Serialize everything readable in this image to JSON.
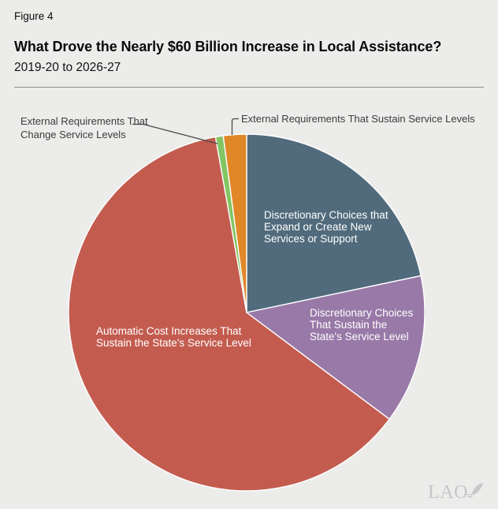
{
  "header": {
    "figure_label": "Figure 4",
    "title": "What Drove the Nearly $60 Billion Increase in Local Assistance?",
    "subtitle": "2019-20 to 2026-27"
  },
  "chart_data": {
    "type": "pie",
    "title": "What Drove the Nearly $60 Billion Increase in Local Assistance?",
    "subtitle": "2019-20 to 2026-27",
    "total_described": "Nearly $60 Billion increase in Local Assistance",
    "values_shown_as_numbers": false,
    "direction": "clockwise",
    "start_angle_deg_from_north": 0,
    "legend": "labels placed on or beside slices",
    "slices": [
      {
        "label": "Discretionary Choices that Expand or Create New Services or Support",
        "share_pct": 21.7,
        "approx_angle_deg": 78,
        "color": "#516b7c",
        "label_placement": "inside"
      },
      {
        "label": "Discretionary Choices That Sustain the State's Service Level",
        "share_pct": 13.5,
        "approx_angle_deg": 48.5,
        "color": "#9879a7",
        "label_placement": "inside"
      },
      {
        "label": "Automatic Cost Increases That Sustain the State's Service Level",
        "share_pct": 62.0,
        "approx_angle_deg": 223.3,
        "color": "#c35c4f",
        "label_placement": "inside"
      },
      {
        "label": "External Requirements That Change Service Levels",
        "share_pct": 0.7,
        "approx_angle_deg": 2.5,
        "color": "#83c563",
        "label_placement": "outside-left-callout"
      },
      {
        "label": "External Requirements That Sustain Service Levels",
        "share_pct": 2.1,
        "approx_angle_deg": 7.7,
        "color": "#e08727",
        "label_placement": "outside-top-callout"
      }
    ]
  },
  "labels": {
    "discretionary_expand": {
      "lines": [
        "Discretionary Choices that",
        "Expand or Create New",
        "Services or Support"
      ]
    },
    "discretionary_sustain": {
      "lines": [
        "Discretionary Choices",
        "That Sustain the",
        "State's Service Level"
      ]
    },
    "automatic_cost": {
      "lines": [
        "Automatic Cost Increases That",
        "Sustain the State's Service Level"
      ]
    },
    "external_change": {
      "lines": [
        "External Requirements That",
        "Change Service Levels"
      ]
    },
    "external_sustain": {
      "lines": [
        "External Requirements That Sustain Service Levels"
      ]
    }
  },
  "watermark": {
    "text": "LAO"
  },
  "colors": {
    "background": "#ecedeb",
    "slice_separator": "#ffffff",
    "callout_text": "#3c3c3c",
    "leader_line": "#4a4a4a",
    "watermark": "#c5c7c8"
  }
}
